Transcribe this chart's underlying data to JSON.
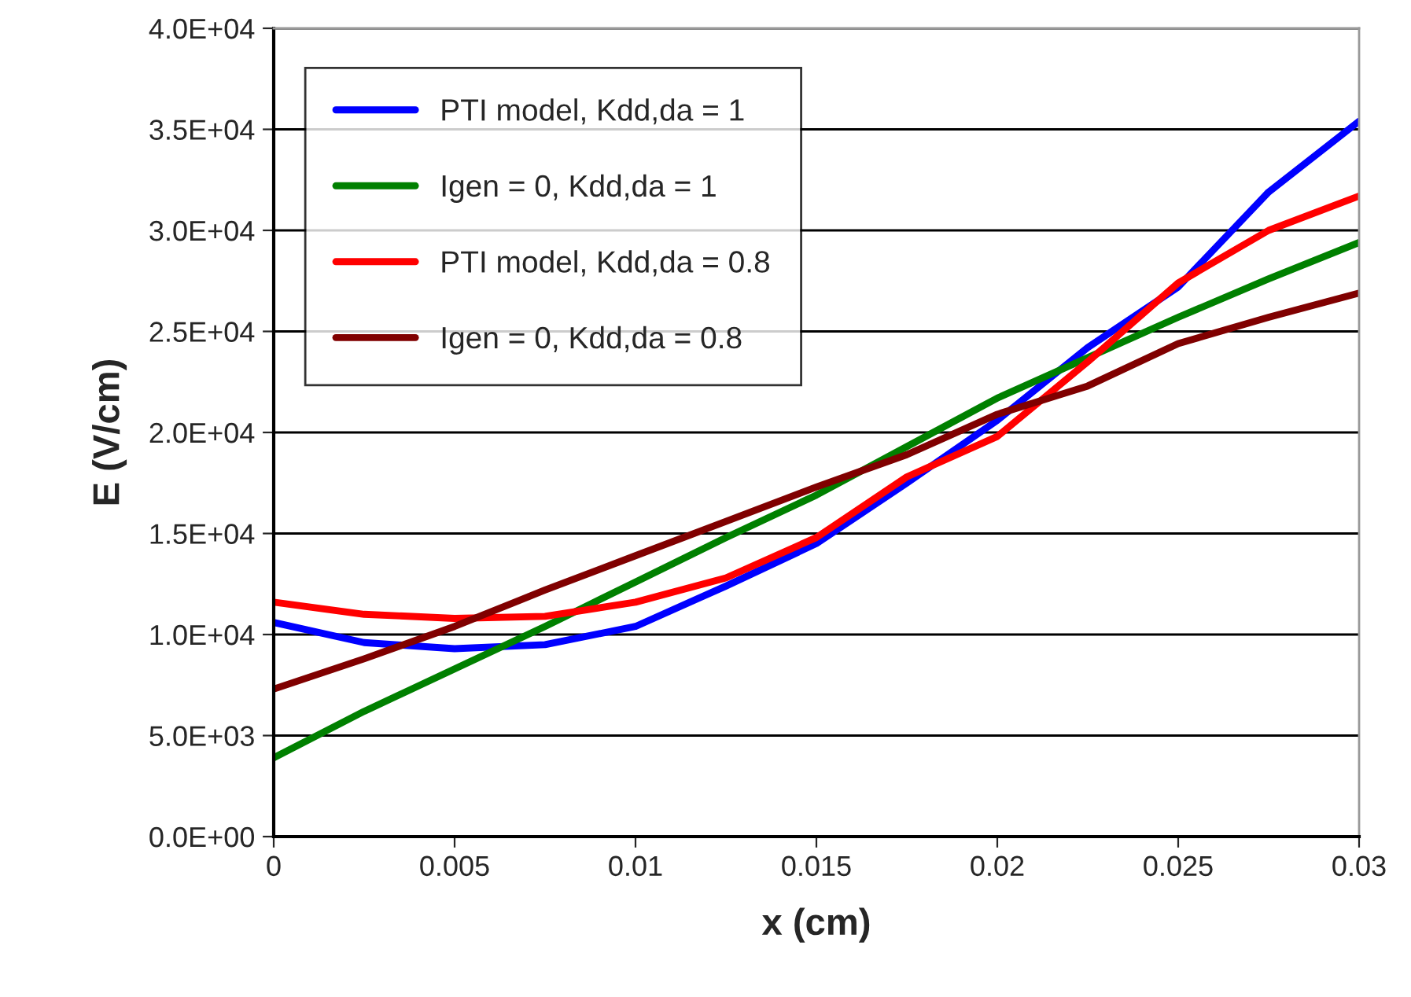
{
  "chart_data": {
    "type": "line",
    "xlabel": "x (cm)",
    "ylabel": "E (V/cm)",
    "x": [
      0,
      0.0025,
      0.005,
      0.0075,
      0.01,
      0.0125,
      0.015,
      0.0175,
      0.02,
      0.0225,
      0.025,
      0.0275,
      0.03
    ],
    "series": [
      {
        "name": "PTI model, Kdd,da = 1",
        "color": "#0000ff",
        "values": [
          10600,
          9600,
          9300,
          9500,
          10400,
          12400,
          14500,
          17500,
          20600,
          24200,
          27200,
          31900,
          35400
        ]
      },
      {
        "name": "Igen = 0, Kdd,da = 1",
        "color": "#008000",
        "values": [
          3900,
          6200,
          8300,
          10400,
          12600,
          14800,
          16900,
          19300,
          21700,
          23700,
          25700,
          27600,
          29400
        ]
      },
      {
        "name": "PTI model, Kdd,da = 0.8",
        "color": "#ff0000",
        "values": [
          11600,
          11000,
          10800,
          10900,
          11600,
          12800,
          14800,
          17800,
          19800,
          23500,
          27400,
          30000,
          31700
        ]
      },
      {
        "name": "Igen = 0, Kdd,da = 0.8",
        "color": "#800000",
        "values": [
          7300,
          8800,
          10400,
          12200,
          13900,
          15600,
          17300,
          18900,
          20900,
          22300,
          24400,
          25700,
          26900
        ]
      }
    ],
    "xlim": [
      0,
      0.03
    ],
    "xticks": [
      0,
      0.005,
      0.01,
      0.015,
      0.02,
      0.025,
      0.03
    ],
    "ylim": [
      0,
      40000
    ],
    "yticks": [
      {
        "value": 0,
        "label": "0.0E+00"
      },
      {
        "value": 5000,
        "label": "5.0E+03"
      },
      {
        "value": 10000,
        "label": "1.0E+04"
      },
      {
        "value": 15000,
        "label": "1.5E+04"
      },
      {
        "value": 20000,
        "label": "2.0E+04"
      },
      {
        "value": 25000,
        "label": "2.5E+04"
      },
      {
        "value": 30000,
        "label": "3.0E+04"
      },
      {
        "value": 35000,
        "label": "3.5E+04"
      },
      {
        "value": 40000,
        "label": "4.0E+04"
      }
    ],
    "grid": "y",
    "legend": "top left",
    "marker": "none",
    "line_style": "solid"
  }
}
